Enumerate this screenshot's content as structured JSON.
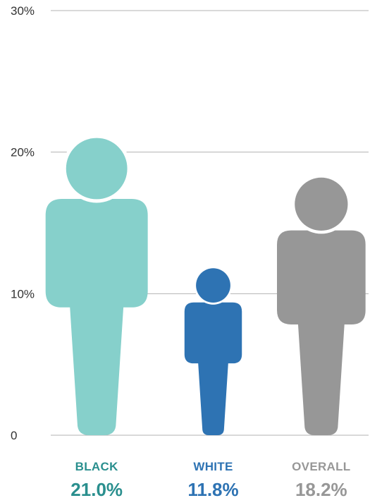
{
  "chart_data": {
    "type": "bar",
    "categories": [
      "BLACK",
      "WHITE",
      "OVERALL"
    ],
    "values": [
      21.0,
      11.8,
      18.2
    ],
    "value_labels": [
      "21.0%",
      "11.8%",
      "18.2%"
    ],
    "colors": [
      "#86d0cb",
      "#2e73b3",
      "#979797"
    ],
    "label_colors": [
      "#2a8f8e",
      "#2e73b3",
      "#979797"
    ],
    "yticks": [
      "0",
      "10%",
      "20%",
      "30%"
    ],
    "ytick_values": [
      0,
      10,
      20,
      30
    ],
    "ylim": [
      0,
      30
    ],
    "grid": true,
    "mark_style": "person-pictogram"
  }
}
